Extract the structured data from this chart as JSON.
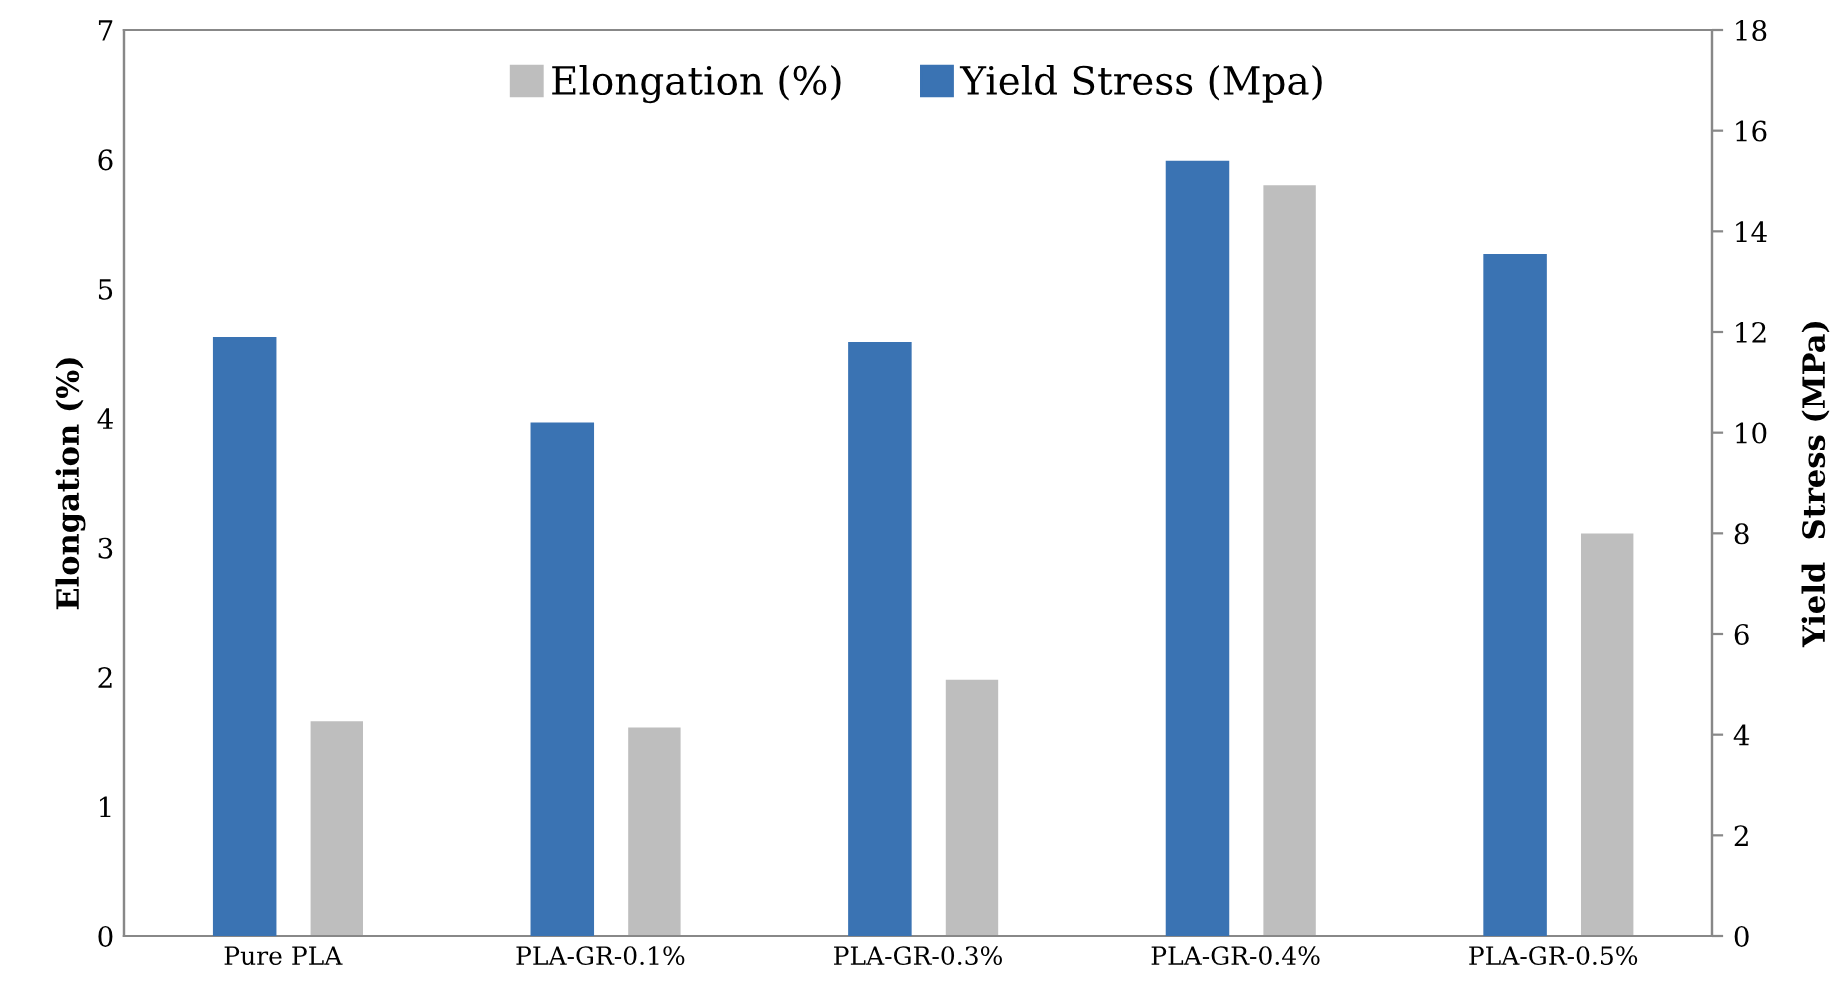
{
  "chart_data": {
    "type": "bar",
    "categories": [
      "Pure PLA",
      "PLA-GR-0.1%",
      "PLA-GR-0.3%",
      "PLA-GR-0.4%",
      "PLA-GR-0.5%"
    ],
    "series": [
      {
        "name": "Elongation (%)",
        "color": "#bebebe",
        "values": [
          1.66,
          1.61,
          1.98,
          5.8,
          3.11
        ]
      },
      {
        "name": "Yield Stress (Mpa)",
        "color": "#3a73b3",
        "axis": "y2",
        "values": [
          11.9,
          10.2,
          11.8,
          15.4,
          13.55
        ]
      }
    ],
    "ylabel": "Elongation (%)",
    "y2label": "Yield  Stress (MPa)",
    "ylim": [
      0,
      7
    ],
    "yticks": [
      0,
      1,
      2,
      3,
      4,
      5,
      6,
      7
    ],
    "y2lim": [
      0,
      18
    ],
    "y2ticks": [
      0,
      2,
      4,
      6,
      8,
      10,
      12,
      14,
      16,
      18
    ],
    "legend": "top",
    "grid": false
  }
}
